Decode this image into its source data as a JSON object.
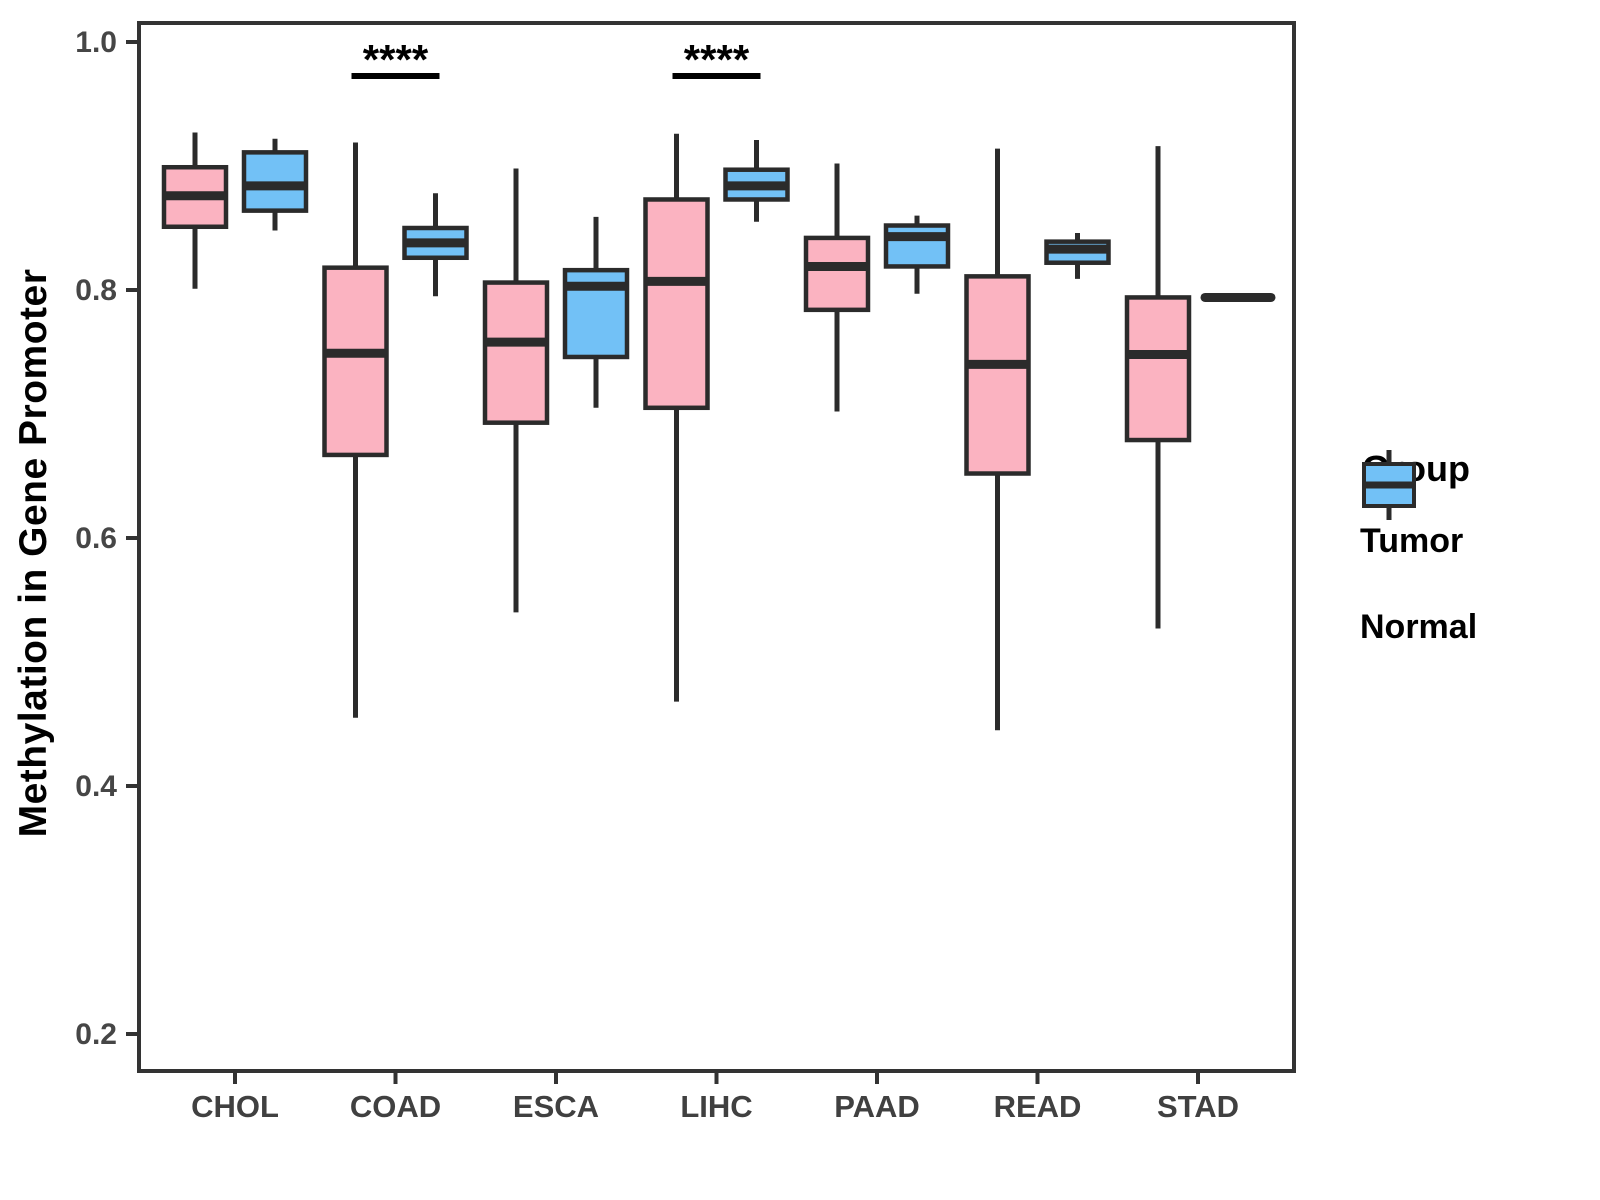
{
  "chart_data": {
    "type": "grouped_boxplot",
    "title": "",
    "xlabel": "",
    "ylabel": "Methylation in Gene Promoter",
    "categories": [
      "CHOL",
      "COAD",
      "ESCA",
      "LIHC",
      "PAAD",
      "READ",
      "STAD"
    ],
    "y_ticks": [
      1.0,
      0.8,
      0.6,
      0.4,
      0.2
    ],
    "y_tick_labels": [
      "1.0",
      "0.8",
      "0.6",
      "0.4",
      "0.2"
    ],
    "ylim": [
      0.17,
      1.015
    ],
    "grid": "off",
    "legend_position": "right",
    "series": [
      {
        "name": "Tumor",
        "color": "#FBB3C1",
        "boxes": [
          {
            "category": "CHOL",
            "min": 0.801,
            "q1": 0.851,
            "median": 0.876,
            "q3": 0.899,
            "max": 0.927
          },
          {
            "category": "COAD",
            "min": 0.455,
            "q1": 0.667,
            "median": 0.749,
            "q3": 0.818,
            "max": 0.919
          },
          {
            "category": "ESCA",
            "min": 0.54,
            "q1": 0.693,
            "median": 0.758,
            "q3": 0.806,
            "max": 0.898
          },
          {
            "category": "LIHC",
            "min": 0.468,
            "q1": 0.705,
            "median": 0.807,
            "q3": 0.873,
            "max": 0.926
          },
          {
            "category": "PAAD",
            "min": 0.702,
            "q1": 0.784,
            "median": 0.819,
            "q3": 0.842,
            "max": 0.902
          },
          {
            "category": "READ",
            "min": 0.445,
            "q1": 0.652,
            "median": 0.74,
            "q3": 0.811,
            "max": 0.914
          },
          {
            "category": "STAD",
            "min": 0.527,
            "q1": 0.679,
            "median": 0.748,
            "q3": 0.794,
            "max": 0.916
          }
        ]
      },
      {
        "name": "Normal",
        "color": "#72C1F6",
        "boxes": [
          {
            "category": "CHOL",
            "min": 0.848,
            "q1": 0.864,
            "median": 0.884,
            "q3": 0.911,
            "max": 0.922
          },
          {
            "category": "COAD",
            "min": 0.795,
            "q1": 0.826,
            "median": 0.838,
            "q3": 0.85,
            "max": 0.878
          },
          {
            "category": "ESCA",
            "min": 0.705,
            "q1": 0.746,
            "median": 0.803,
            "q3": 0.816,
            "max": 0.859
          },
          {
            "category": "LIHC",
            "min": 0.855,
            "q1": 0.873,
            "median": 0.884,
            "q3": 0.897,
            "max": 0.921
          },
          {
            "category": "PAAD",
            "min": 0.797,
            "q1": 0.819,
            "median": 0.843,
            "q3": 0.852,
            "max": 0.86
          },
          {
            "category": "READ",
            "min": 0.809,
            "q1": 0.822,
            "median": 0.833,
            "q3": 0.839,
            "max": 0.846
          },
          {
            "category": "STAD",
            "min": 0.794,
            "q1": 0.794,
            "median": 0.794,
            "q3": 0.794,
            "max": 0.794
          }
        ]
      }
    ],
    "significance": [
      {
        "category": "COAD",
        "label": "****"
      },
      {
        "category": "LIHC",
        "label": "****"
      }
    ],
    "legend": {
      "title": "Group",
      "entries": [
        "Tumor",
        "Normal"
      ]
    },
    "colors": {
      "box_stroke": "#2B2B2B",
      "axis": "#333333",
      "tick_text": "#464646",
      "sig": "#000000"
    }
  }
}
